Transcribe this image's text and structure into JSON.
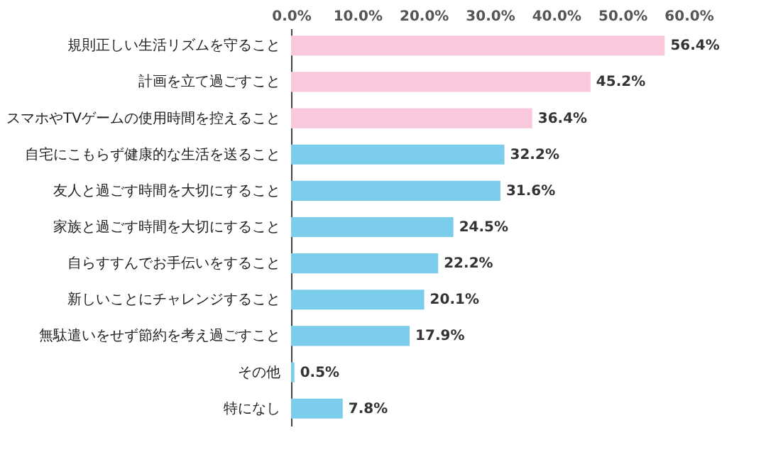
{
  "chart_data": {
    "type": "bar",
    "orientation": "horizontal",
    "categories": [
      "規則正しい生活リズムを守ること",
      "計画を立て過ごすこと",
      "スマホやTVゲームの使用時間を控えること",
      "自宅にこもらず健康的な生活を送ること",
      "友人と過ごす時間を大切にすること",
      "家族と過ごす時間を大切にすること",
      "自らすすんでお手伝いをすること",
      "新しいことにチャレンジすること",
      "無駄遣いをせず節約を考え過ごすこと",
      "その他",
      "特になし"
    ],
    "values": [
      56.4,
      45.2,
      36.4,
      32.2,
      31.6,
      24.5,
      22.2,
      20.1,
      17.9,
      0.5,
      7.8
    ],
    "value_labels": [
      "56.4%",
      "45.2%",
      "36.4%",
      "32.2%",
      "31.6%",
      "24.5%",
      "22.2%",
      "20.1%",
      "17.9%",
      "0.5%",
      "7.8%"
    ],
    "colors": [
      "#f9c8dc",
      "#f9c8dc",
      "#f9c8dc",
      "#7ccdec",
      "#7ccdec",
      "#7ccdec",
      "#7ccdec",
      "#7ccdec",
      "#7ccdec",
      "#7ccdec",
      "#7ccdec"
    ],
    "xlim": [
      0,
      60
    ],
    "xticks": [
      {
        "value": 0,
        "label": "0.0%"
      },
      {
        "value": 10,
        "label": "10.0%"
      },
      {
        "value": 20,
        "label": "20.0%"
      },
      {
        "value": 30,
        "label": "30.0%"
      },
      {
        "value": 40,
        "label": "40.0%"
      },
      {
        "value": 50,
        "label": "50.0%"
      },
      {
        "value": 60,
        "label": "60.0%"
      }
    ],
    "grid": false
  }
}
